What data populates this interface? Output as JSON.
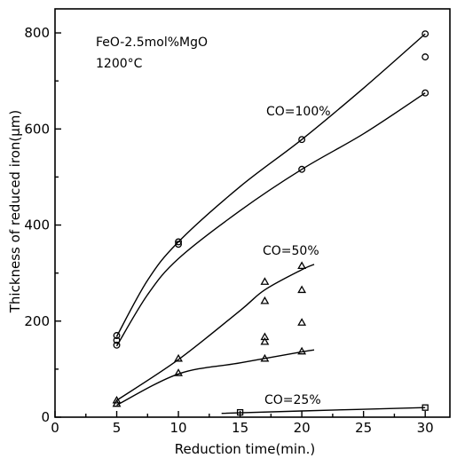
{
  "chart_data": {
    "type": "scatter",
    "xlabel": "Reduction time(min.)",
    "ylabel": "Thickness of reduced iron(μm)",
    "xlim": [
      0,
      32
    ],
    "ylim": [
      0,
      850
    ],
    "xticks": [
      0,
      5,
      10,
      15,
      20,
      25,
      30
    ],
    "yticks": [
      0,
      200,
      400,
      600,
      800
    ],
    "grid": false,
    "annotations": [
      {
        "id": "material",
        "text": "FeO-2.5mol%MgO"
      },
      {
        "id": "temperature",
        "text": "1200°C"
      },
      {
        "id": "co100",
        "text": "CO=100%"
      },
      {
        "id": "co50",
        "text": "CO=50%"
      },
      {
        "id": "co25",
        "text": "CO=25%"
      }
    ],
    "series": [
      {
        "id": "co100",
        "marker": "circle",
        "points": [
          [
            5,
            170
          ],
          [
            5,
            160
          ],
          [
            5,
            150
          ],
          [
            10,
            365
          ],
          [
            10,
            360
          ],
          [
            20,
            578
          ],
          [
            20,
            516
          ],
          [
            30,
            798
          ],
          [
            30,
            750
          ],
          [
            30,
            675
          ]
        ]
      },
      {
        "id": "co50",
        "marker": "triangle",
        "points": [
          [
            5,
            35
          ],
          [
            5,
            28
          ],
          [
            10,
            122
          ],
          [
            10,
            92
          ],
          [
            17,
            282
          ],
          [
            17,
            242
          ],
          [
            17,
            167
          ],
          [
            17,
            157
          ],
          [
            17,
            122
          ],
          [
            20,
            315
          ],
          [
            20,
            265
          ],
          [
            20,
            197
          ],
          [
            20,
            137
          ]
        ]
      },
      {
        "id": "co25",
        "marker": "square",
        "points": [
          [
            15,
            10
          ],
          [
            30,
            20
          ]
        ]
      }
    ],
    "curves": [
      {
        "id": "co100-upper",
        "points": [
          [
            5,
            168
          ],
          [
            7.5,
            285
          ],
          [
            10,
            365
          ],
          [
            15,
            480
          ],
          [
            20,
            578
          ],
          [
            25,
            685
          ],
          [
            30,
            798
          ]
        ]
      },
      {
        "id": "co100-lower",
        "points": [
          [
            5,
            148
          ],
          [
            7.5,
            255
          ],
          [
            10,
            330
          ],
          [
            15,
            430
          ],
          [
            20,
            516
          ],
          [
            25,
            590
          ],
          [
            30,
            675
          ]
        ]
      },
      {
        "id": "co50-upper",
        "points": [
          [
            5,
            35
          ],
          [
            10,
            120
          ],
          [
            15,
            222
          ],
          [
            17,
            265
          ],
          [
            20,
            307
          ],
          [
            21,
            318
          ]
        ]
      },
      {
        "id": "co50-lower",
        "points": [
          [
            5,
            25
          ],
          [
            10,
            90
          ],
          [
            15,
            113
          ],
          [
            20,
            136
          ],
          [
            21,
            140
          ]
        ]
      },
      {
        "id": "co25",
        "points": [
          [
            13.5,
            8
          ],
          [
            20,
            13
          ],
          [
            30,
            20
          ]
        ]
      }
    ]
  }
}
